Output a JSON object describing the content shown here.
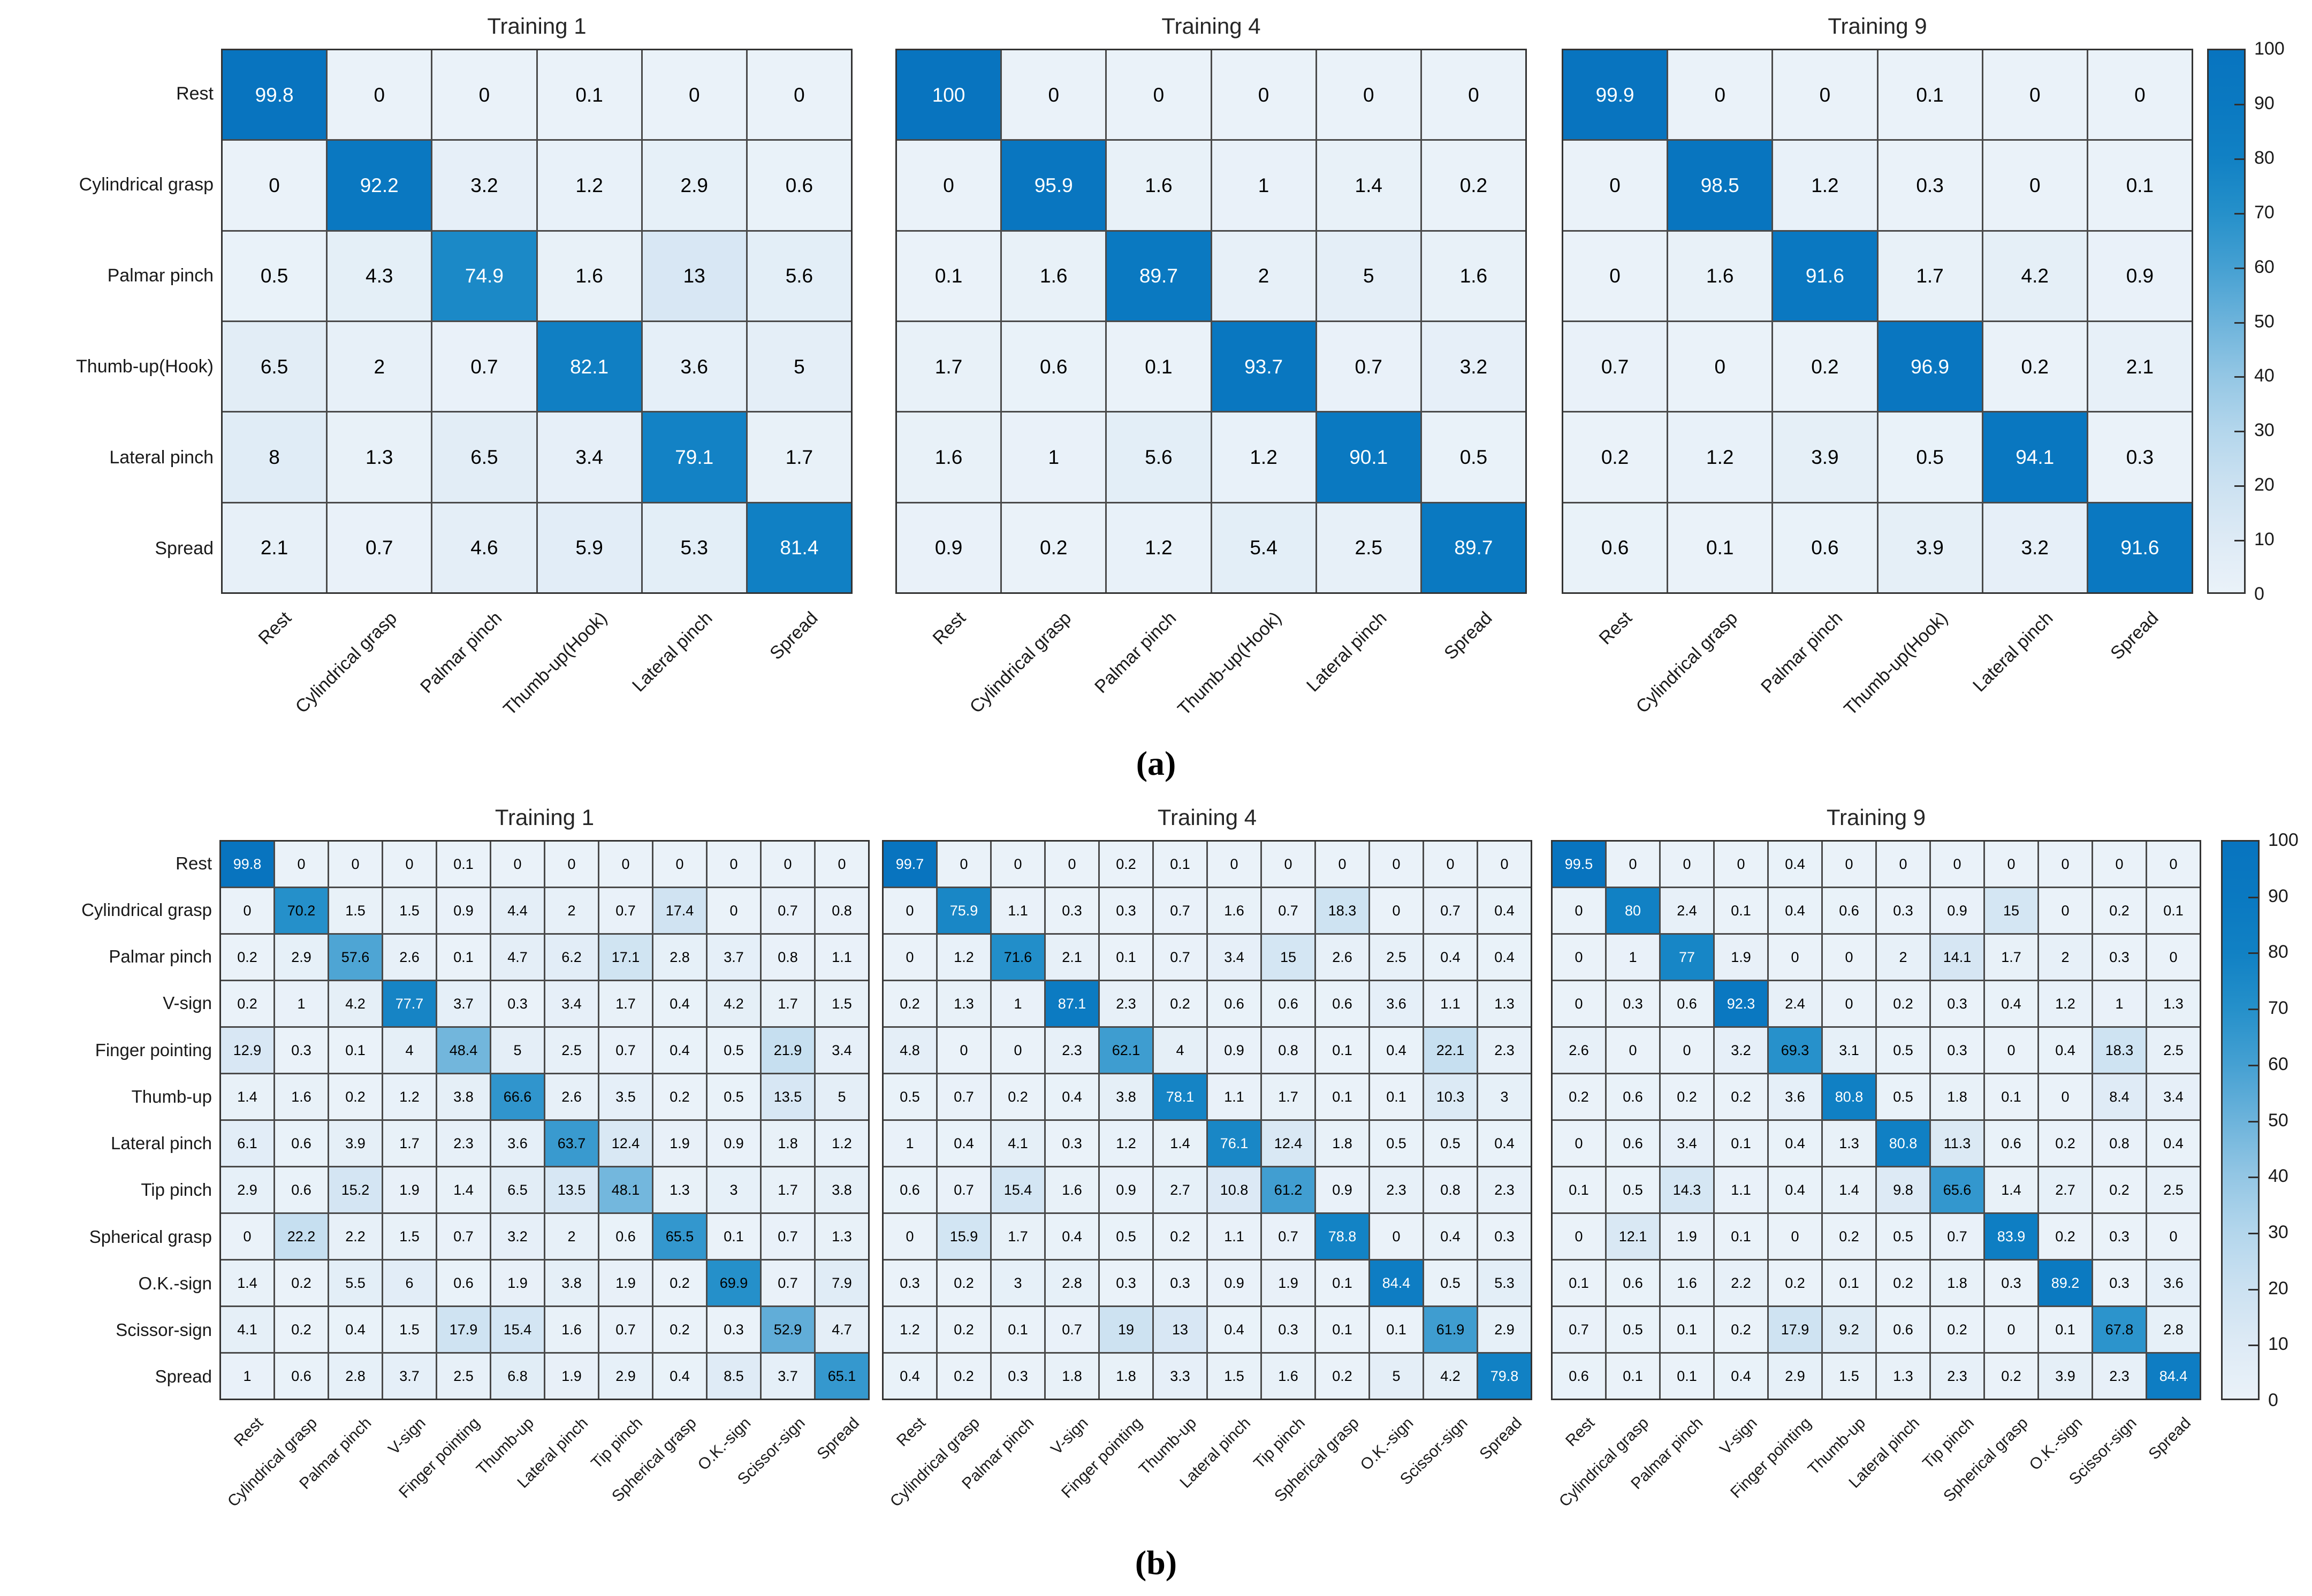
{
  "text_threshold": 73,
  "colors": {
    "background": "#ffffff",
    "grid_line": "#4a4a4a",
    "outer_border": "#333333",
    "title_color": "#262626",
    "label_color": "#1a1a1a",
    "text_on_dark": "#ffffff",
    "text_on_light": "#000000",
    "colormap_stops": [
      [
        0,
        "#eaf2f9"
      ],
      [
        10,
        "#ddeaf5"
      ],
      [
        20,
        "#cbe1f1"
      ],
      [
        30,
        "#b3d6ec"
      ],
      [
        40,
        "#93c6e4"
      ],
      [
        50,
        "#6cb3db"
      ],
      [
        60,
        "#45a0d2"
      ],
      [
        70,
        "#2590ca"
      ],
      [
        80,
        "#1181c4"
      ],
      [
        90,
        "#0a79c1"
      ],
      [
        100,
        "#0874bf"
      ]
    ]
  },
  "chart_data": [
    {
      "type": "heatmap",
      "panel": "a",
      "caption": "(a)",
      "legend_position": "right",
      "grid": "on",
      "value_range": [
        0,
        100
      ],
      "categories": [
        "Rest",
        "Cylindrical grasp",
        "Palmar pinch",
        "Thumb-up(Hook)",
        "Lateral pinch",
        "Spread"
      ],
      "colorbar": {
        "min": 0,
        "max": 100,
        "ticks": [
          100,
          90,
          80,
          70,
          60,
          50,
          40,
          30,
          20,
          10,
          0
        ]
      },
      "matrices": [
        {
          "title": "Training 1",
          "rows": [
            [
              99.8,
              0,
              0,
              0.1,
              0,
              0
            ],
            [
              0,
              92.2,
              3.2,
              1.2,
              2.9,
              0.6
            ],
            [
              0.5,
              4.3,
              74.9,
              1.6,
              13,
              5.6
            ],
            [
              6.5,
              2,
              0.7,
              82.1,
              3.6,
              5
            ],
            [
              8,
              1.3,
              6.5,
              3.4,
              79.1,
              1.7
            ],
            [
              2.1,
              0.7,
              4.6,
              5.9,
              5.3,
              81.4
            ]
          ]
        },
        {
          "title": "Training 4",
          "rows": [
            [
              100,
              0,
              0,
              0,
              0,
              0
            ],
            [
              0,
              95.9,
              1.6,
              1,
              1.4,
              0.2
            ],
            [
              0.1,
              1.6,
              89.7,
              2,
              5,
              1.6
            ],
            [
              1.7,
              0.6,
              0.1,
              93.7,
              0.7,
              3.2
            ],
            [
              1.6,
              1,
              5.6,
              1.2,
              90.1,
              0.5
            ],
            [
              0.9,
              0.2,
              1.2,
              5.4,
              2.5,
              89.7
            ]
          ]
        },
        {
          "title": "Training 9",
          "rows": [
            [
              99.9,
              0,
              0,
              0.1,
              0,
              0
            ],
            [
              0,
              98.5,
              1.2,
              0.3,
              0,
              0.1
            ],
            [
              0,
              1.6,
              91.6,
              1.7,
              4.2,
              0.9
            ],
            [
              0.7,
              0,
              0.2,
              96.9,
              0.2,
              2.1
            ],
            [
              0.2,
              1.2,
              3.9,
              0.5,
              94.1,
              0.3
            ],
            [
              0.6,
              0.1,
              0.6,
              3.9,
              3.2,
              91.6
            ]
          ]
        }
      ]
    },
    {
      "type": "heatmap",
      "panel": "b",
      "caption": "(b)",
      "legend_position": "right",
      "grid": "on",
      "value_range": [
        0,
        100
      ],
      "categories": [
        "Rest",
        "Cylindrical grasp",
        "Palmar pinch",
        "V-sign",
        "Finger pointing",
        "Thumb-up",
        "Lateral pinch",
        "Tip pinch",
        "Spherical grasp",
        "O.K.-sign",
        "Scissor-sign",
        "Spread"
      ],
      "colorbar": {
        "min": 0,
        "max": 100,
        "ticks": [
          100,
          90,
          80,
          70,
          60,
          50,
          40,
          30,
          20,
          10,
          0
        ]
      },
      "matrices": [
        {
          "title": "Training 1",
          "rows": [
            [
              99.8,
              0,
              0,
              0,
              0.1,
              0,
              0,
              0,
              0,
              0,
              0,
              0
            ],
            [
              0,
              70.2,
              1.5,
              1.5,
              0.9,
              4.4,
              2,
              0.7,
              17.4,
              0,
              0.7,
              0.8
            ],
            [
              0.2,
              2.9,
              57.6,
              2.6,
              0.1,
              4.7,
              6.2,
              17.1,
              2.8,
              3.7,
              0.8,
              1.1
            ],
            [
              0.2,
              1,
              4.2,
              77.7,
              3.7,
              0.3,
              3.4,
              1.7,
              0.4,
              4.2,
              1.7,
              1.5
            ],
            [
              12.9,
              0.3,
              0.1,
              4,
              48.4,
              5,
              2.5,
              0.7,
              0.4,
              0.5,
              21.9,
              3.4
            ],
            [
              1.4,
              1.6,
              0.2,
              1.2,
              3.8,
              66.6,
              2.6,
              3.5,
              0.2,
              0.5,
              13.5,
              5
            ],
            [
              6.1,
              0.6,
              3.9,
              1.7,
              2.3,
              3.6,
              63.7,
              12.4,
              1.9,
              0.9,
              1.8,
              1.2
            ],
            [
              2.9,
              0.6,
              15.2,
              1.9,
              1.4,
              6.5,
              13.5,
              48.1,
              1.3,
              3,
              1.7,
              3.8
            ],
            [
              0,
              22.2,
              2.2,
              1.5,
              0.7,
              3.2,
              2,
              0.6,
              65.5,
              0.1,
              0.7,
              1.3
            ],
            [
              1.4,
              0.2,
              5.5,
              6,
              0.6,
              1.9,
              3.8,
              1.9,
              0.2,
              69.9,
              0.7,
              7.9
            ],
            [
              4.1,
              0.2,
              0.4,
              1.5,
              17.9,
              15.4,
              1.6,
              0.7,
              0.2,
              0.3,
              52.9,
              4.7
            ],
            [
              1,
              0.6,
              2.8,
              3.7,
              2.5,
              6.8,
              1.9,
              2.9,
              0.4,
              8.5,
              3.7,
              65.1
            ]
          ]
        },
        {
          "title": "Training 4",
          "rows": [
            [
              99.7,
              0,
              0,
              0,
              0.2,
              0.1,
              0,
              0,
              0,
              0,
              0,
              0
            ],
            [
              0,
              75.9,
              1.1,
              0.3,
              0.3,
              0.7,
              1.6,
              0.7,
              18.3,
              0,
              0.7,
              0.4
            ],
            [
              0,
              1.2,
              71.6,
              2.1,
              0.1,
              0.7,
              3.4,
              15,
              2.6,
              2.5,
              0.4,
              0.4
            ],
            [
              0.2,
              1.3,
              1,
              87.1,
              2.3,
              0.2,
              0.6,
              0.6,
              0.6,
              3.6,
              1.1,
              1.3
            ],
            [
              4.8,
              0,
              0,
              2.3,
              62.1,
              4,
              0.9,
              0.8,
              0.1,
              0.4,
              22.1,
              2.3
            ],
            [
              0.5,
              0.7,
              0.2,
              0.4,
              3.8,
              78.1,
              1.1,
              1.7,
              0.1,
              0.1,
              10.3,
              3
            ],
            [
              1,
              0.4,
              4.1,
              0.3,
              1.2,
              1.4,
              76.1,
              12.4,
              1.8,
              0.5,
              0.5,
              0.4
            ],
            [
              0.6,
              0.7,
              15.4,
              1.6,
              0.9,
              2.7,
              10.8,
              61.2,
              0.9,
              2.3,
              0.8,
              2.3
            ],
            [
              0,
              15.9,
              1.7,
              0.4,
              0.5,
              0.2,
              1.1,
              0.7,
              78.8,
              0,
              0.4,
              0.3
            ],
            [
              0.3,
              0.2,
              3,
              2.8,
              0.3,
              0.3,
              0.9,
              1.9,
              0.1,
              84.4,
              0.5,
              5.3
            ],
            [
              1.2,
              0.2,
              0.1,
              0.7,
              19,
              13,
              0.4,
              0.3,
              0.1,
              0.1,
              61.9,
              2.9
            ],
            [
              0.4,
              0.2,
              0.3,
              1.8,
              1.8,
              3.3,
              1.5,
              1.6,
              0.2,
              5,
              4.2,
              79.8
            ]
          ]
        },
        {
          "title": "Training 9",
          "rows": [
            [
              99.5,
              0,
              0,
              0,
              0.4,
              0,
              0,
              0,
              0,
              0,
              0,
              0
            ],
            [
              0,
              80,
              2.4,
              0.1,
              0.4,
              0.6,
              0.3,
              0.9,
              15,
              0,
              0.2,
              0.1
            ],
            [
              0,
              1,
              77,
              1.9,
              0,
              0,
              2,
              14.1,
              1.7,
              2,
              0.3,
              0
            ],
            [
              0,
              0.3,
              0.6,
              92.3,
              2.4,
              0,
              0.2,
              0.3,
              0.4,
              1.2,
              1,
              1.3
            ],
            [
              2.6,
              0,
              0,
              3.2,
              69.3,
              3.1,
              0.5,
              0.3,
              0,
              0.4,
              18.3,
              2.5
            ],
            [
              0.2,
              0.6,
              0.2,
              0.2,
              3.6,
              80.8,
              0.5,
              1.8,
              0.1,
              0,
              8.4,
              3.4
            ],
            [
              0,
              0.6,
              3.4,
              0.1,
              0.4,
              1.3,
              80.8,
              11.3,
              0.6,
              0.2,
              0.8,
              0.4
            ],
            [
              0.1,
              0.5,
              14.3,
              1.1,
              0.4,
              1.4,
              9.8,
              65.6,
              1.4,
              2.7,
              0.2,
              2.5
            ],
            [
              0,
              12.1,
              1.9,
              0.1,
              0,
              0.2,
              0.5,
              0.7,
              83.9,
              0.2,
              0.3,
              0
            ],
            [
              0.1,
              0.6,
              1.6,
              2.2,
              0.2,
              0.1,
              0.2,
              1.8,
              0.3,
              89.2,
              0.3,
              3.6
            ],
            [
              0.7,
              0.5,
              0.1,
              0.2,
              17.9,
              9.2,
              0.6,
              0.2,
              0,
              0.1,
              67.8,
              2.8
            ],
            [
              0.6,
              0.1,
              0.1,
              0.4,
              2.9,
              1.5,
              1.3,
              2.3,
              0.2,
              3.9,
              2.3,
              84.4
            ]
          ]
        }
      ]
    }
  ]
}
